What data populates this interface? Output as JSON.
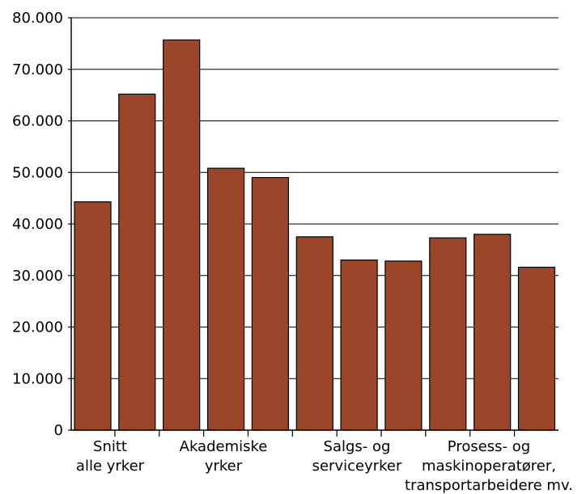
{
  "chart_data": {
    "type": "bar",
    "categories": [
      [
        "Snitt",
        "alle yrker"
      ],
      [],
      [],
      [
        "Akademiske",
        "yrker"
      ],
      [],
      [],
      [
        "Salgs- og",
        "serviceyrker"
      ],
      [],
      [],
      [
        "Prosess- og",
        "maskinoperatører,",
        "transportarbeidere mv."
      ],
      []
    ],
    "values": [
      44300,
      65200,
      75700,
      50800,
      49000,
      37500,
      33000,
      32800,
      37300,
      38000,
      31600
    ],
    "ylim": [
      0,
      80000
    ],
    "yticks": [
      0,
      10000,
      20000,
      30000,
      40000,
      50000,
      60000,
      70000,
      80000
    ],
    "ytick_labels": [
      "0",
      "10.000",
      "20.000",
      "30.000",
      "40.000",
      "50.000",
      "60.000",
      "70.000",
      "80.000"
    ],
    "grid": true,
    "bar_color": "#9b4629",
    "bar_edge_color": "#000000",
    "title": "",
    "xlabel": "",
    "ylabel": ""
  }
}
